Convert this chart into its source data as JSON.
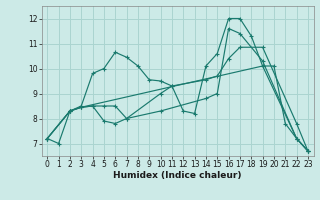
{
  "title": "",
  "xlabel": "Humidex (Indice chaleur)",
  "bg_color": "#cceae7",
  "grid_color": "#aad4d0",
  "line_color": "#1a7a6e",
  "xlim": [
    -0.5,
    23.5
  ],
  "ylim": [
    6.5,
    12.5
  ],
  "xticks": [
    0,
    1,
    2,
    3,
    4,
    5,
    6,
    7,
    8,
    9,
    10,
    11,
    12,
    13,
    14,
    15,
    16,
    17,
    18,
    19,
    20,
    21,
    22,
    23
  ],
  "yticks": [
    7,
    8,
    9,
    10,
    11,
    12
  ],
  "series": [
    {
      "x": [
        0,
        1,
        2,
        3,
        4,
        5,
        6,
        7,
        8,
        9,
        10,
        11,
        12,
        13,
        14,
        15,
        16,
        17,
        18,
        19,
        20,
        21,
        22,
        23
      ],
      "y": [
        7.2,
        7.0,
        8.3,
        8.5,
        9.8,
        10.0,
        10.65,
        10.45,
        10.1,
        9.55,
        9.5,
        9.3,
        8.3,
        8.2,
        10.1,
        10.6,
        12.0,
        12.0,
        11.3,
        10.1,
        10.1,
        7.8,
        7.2,
        6.7
      ]
    },
    {
      "x": [
        0,
        2,
        3,
        4,
        5,
        6,
        7,
        10,
        11,
        14,
        15,
        16,
        17,
        19,
        22,
        23
      ],
      "y": [
        7.2,
        8.3,
        8.45,
        8.5,
        8.5,
        8.5,
        8.0,
        9.0,
        9.3,
        9.55,
        9.7,
        10.4,
        10.85,
        10.85,
        7.8,
        6.7
      ]
    },
    {
      "x": [
        0,
        2,
        3,
        4,
        5,
        6,
        7,
        10,
        14,
        15,
        16,
        17,
        19,
        22,
        23
      ],
      "y": [
        7.2,
        8.3,
        8.45,
        8.5,
        7.9,
        7.8,
        8.0,
        8.3,
        8.8,
        9.0,
        11.6,
        11.4,
        10.3,
        7.2,
        6.7
      ]
    },
    {
      "x": [
        0,
        2,
        3,
        19,
        22,
        23
      ],
      "y": [
        7.2,
        8.3,
        8.45,
        10.1,
        7.2,
        6.7
      ]
    }
  ]
}
